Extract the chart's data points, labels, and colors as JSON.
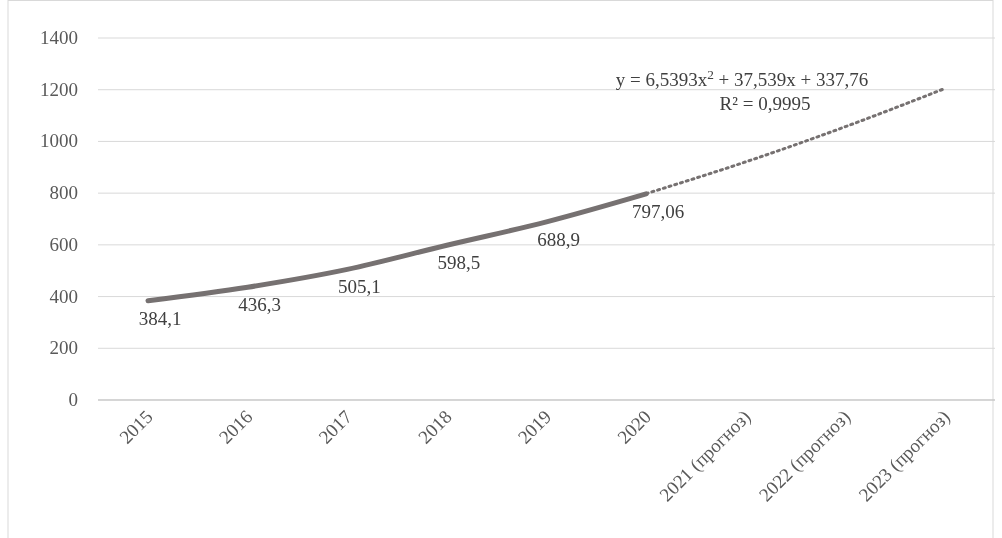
{
  "chart_data": {
    "type": "line",
    "categories": [
      "2015",
      "2016",
      "2017",
      "2018",
      "2019",
      "2020",
      "2021 (прогноз)",
      "2022 (прогноз)",
      "2023 (прогноз)"
    ],
    "series": [
      {
        "color": "#767171",
        "values": [
          384.1,
          436.3,
          505.1,
          598.5,
          688.9,
          797.06,
          null,
          null,
          null
        ],
        "value_labels": [
          "384,1",
          "436,3",
          "505,1",
          "598,5",
          "688,9",
          "797,06",
          null,
          null,
          null
        ],
        "line_style": "solid"
      },
      {
        "color": "#767171",
        "values": [
          null,
          null,
          null,
          null,
          null,
          798,
          921,
          1057,
          1205
        ],
        "line_style": "dotted"
      }
    ],
    "ylim": [
      0,
      1400
    ],
    "yticks": [
      0,
      200,
      400,
      600,
      800,
      1000,
      1200,
      1400
    ],
    "grid": "y",
    "marker": "none",
    "annotations": [
      "y = 6,5393x$^{2}$ + 37,539x + 337,76",
      "R² = 0,9995"
    ]
  }
}
